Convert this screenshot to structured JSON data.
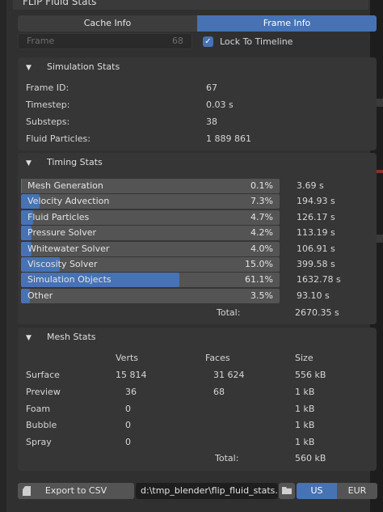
{
  "panel": {
    "title": "FLIP Fluid Stats"
  },
  "tabs": [
    {
      "label": "Cache Info",
      "active": false
    },
    {
      "label": "Frame Info",
      "active": true
    }
  ],
  "frame": {
    "label": "Frame",
    "value": "68"
  },
  "lock_to_timeline": {
    "label": "Lock To Timeline",
    "checked": true
  },
  "simulation_stats": {
    "title": "Simulation Stats",
    "rows": [
      {
        "label": "Frame ID:",
        "value": "67"
      },
      {
        "label": "Timestep:",
        "value": "0.03 s"
      },
      {
        "label": "Substeps:",
        "value": "38"
      },
      {
        "label": "Fluid Particles:",
        "value": "1 889 861"
      }
    ]
  },
  "timing_stats": {
    "title": "Timing Stats",
    "rows": [
      {
        "label": "Mesh Generation",
        "pct": "0.1%",
        "fraction": 0.001,
        "time": "3.69 s"
      },
      {
        "label": "Velocity Advection",
        "pct": "7.3%",
        "fraction": 0.073,
        "time": "194.93 s"
      },
      {
        "label": "Fluid Particles",
        "pct": "4.7%",
        "fraction": 0.047,
        "time": "126.17 s"
      },
      {
        "label": "Pressure Solver",
        "pct": "4.2%",
        "fraction": 0.042,
        "time": "113.19 s"
      },
      {
        "label": "Whitewater Solver",
        "pct": "4.0%",
        "fraction": 0.04,
        "time": "106.91 s"
      },
      {
        "label": "Viscosity Solver",
        "pct": "15.0%",
        "fraction": 0.15,
        "time": "399.58 s"
      },
      {
        "label": "Simulation Objects",
        "pct": "61.1%",
        "fraction": 0.611,
        "time": "1632.78 s"
      },
      {
        "label": "Other",
        "pct": "3.5%",
        "fraction": 0.035,
        "time": "93.10 s"
      }
    ],
    "total_label": "Total:",
    "total_value": "2670.35 s"
  },
  "mesh_stats": {
    "title": "Mesh Stats",
    "headers": [
      "Verts",
      "Faces",
      "Size"
    ],
    "rows": [
      {
        "name": "Surface",
        "verts": "15 814",
        "faces": "31 624",
        "size": "556 kB"
      },
      {
        "name": "Preview",
        "verts": "36",
        "faces": "68",
        "size": "1 kB"
      },
      {
        "name": "Foam",
        "verts": "0",
        "faces": "",
        "size": "1 kB"
      },
      {
        "name": "Bubble",
        "verts": "0",
        "faces": "",
        "size": "1 kB"
      },
      {
        "name": "Spray",
        "verts": "0",
        "faces": "",
        "size": "1 kB"
      }
    ],
    "total_label": "Total:",
    "total_value": "560 kB"
  },
  "export": {
    "button_label": "Export to CSV",
    "path": "d:\\tmp_blender\\flip_fluid_stats.csv",
    "units": [
      {
        "label": "US",
        "active": true
      },
      {
        "label": "EUR",
        "active": false
      }
    ]
  },
  "colors": {
    "accent": "#4772b3",
    "panel": "#303030",
    "section": "#363636",
    "bar": "#545454"
  },
  "icons": [
    "collapse-triangle-icon",
    "checkmark-icon",
    "export-file-icon",
    "folder-icon"
  ]
}
